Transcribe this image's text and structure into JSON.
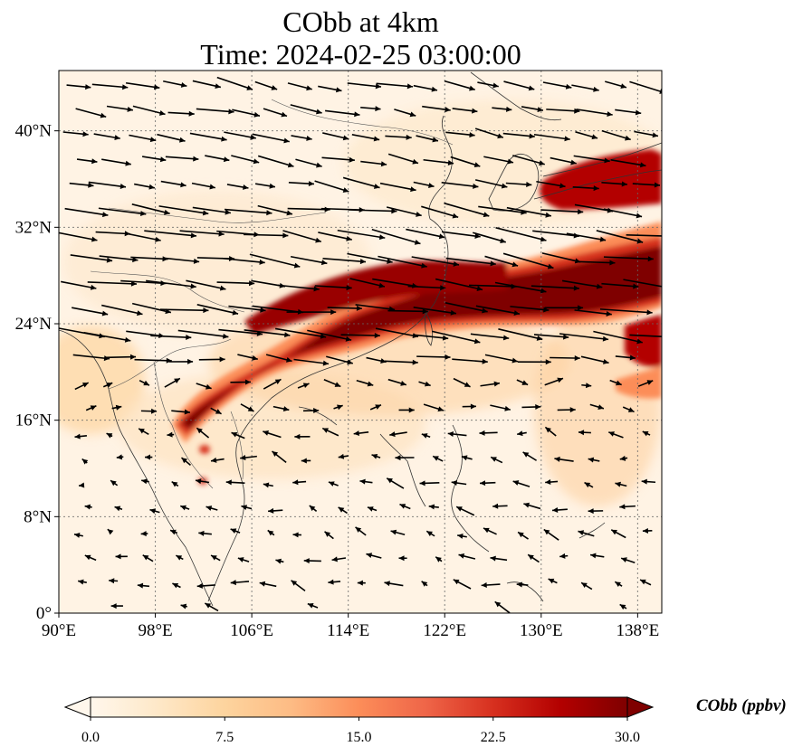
{
  "title": {
    "line1": "CObb at 4km",
    "line2": "Time: 2024-02-25 03:00:00"
  },
  "map": {
    "projection": "PlateCarree",
    "lon_range": [
      90,
      140
    ],
    "lat_range": [
      0,
      45
    ],
    "lon_ticks": [
      {
        "value": 90,
        "label": "90°E"
      },
      {
        "value": 98,
        "label": "98°E"
      },
      {
        "value": 106,
        "label": "106°E"
      },
      {
        "value": 114,
        "label": "114°E"
      },
      {
        "value": 122,
        "label": "122°E"
      },
      {
        "value": 130,
        "label": "130°E"
      },
      {
        "value": 138,
        "label": "138°E"
      }
    ],
    "lat_ticks": [
      {
        "value": 0,
        "label": "0°"
      },
      {
        "value": 8,
        "label": "8°N"
      },
      {
        "value": 16,
        "label": "16°N"
      },
      {
        "value": 24,
        "label": "24°N"
      },
      {
        "value": 32,
        "label": "32°N"
      },
      {
        "value": 40,
        "label": "40°N"
      }
    ],
    "gridlines": true,
    "layers": [
      "coastlines",
      "country-borders",
      "wind-vectors",
      "filled-concentration"
    ]
  },
  "colorbar": {
    "label": "CObb (ppbv)",
    "colormap": "OrRd",
    "range": [
      0,
      30
    ],
    "extend": "both",
    "ticks": [
      "0.0",
      "7.5",
      "15.0",
      "22.5",
      "30.0"
    ],
    "colors": [
      "#fff7ec",
      "#fee8c8",
      "#fdd49e",
      "#fdbb84",
      "#fc8d59",
      "#ef6548",
      "#d7301f",
      "#b30000",
      "#7f0000"
    ]
  },
  "plume": {
    "description_values": "high CObb (>22 ppbv) band from Indochina (~100°E,15°N) east-northeast across southern China and Taiwan to the western Pacific (~140°E,27°N), secondary plume near Japan (~135°E,36°N)"
  }
}
